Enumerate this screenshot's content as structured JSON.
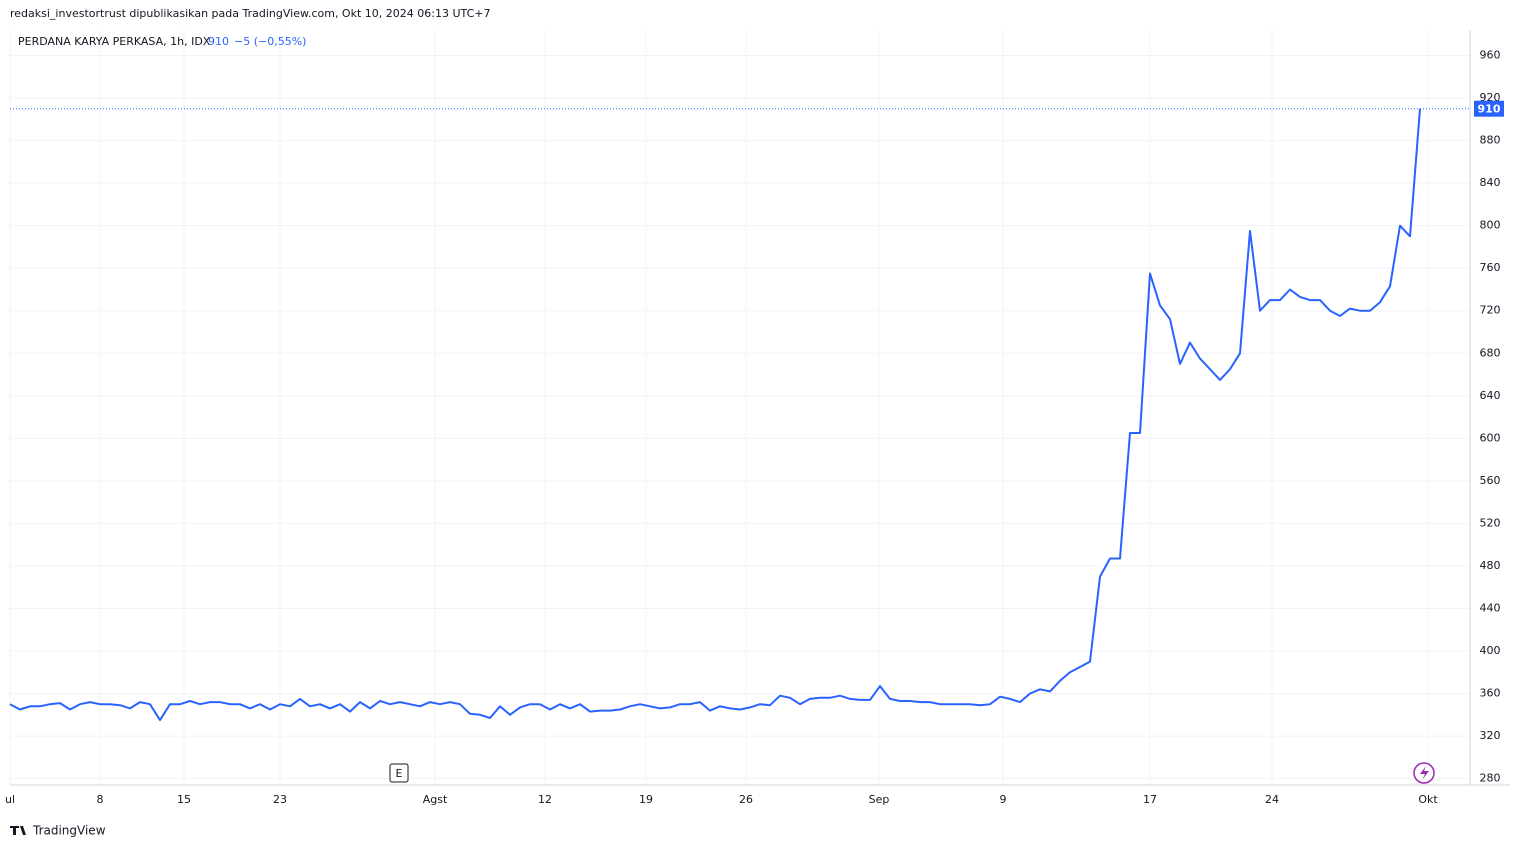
{
  "header": "redaksi_investortrust dipublikasikan pada TradingView.com, Okt 10, 2024 06:13 UTC+7",
  "footer": "TradingView",
  "event_marker": "E",
  "chart_data": {
    "type": "line",
    "title": "PERDANA KARYA PERKASA, 1h, IDX",
    "change": "−5 (−0,55%)",
    "series": [
      {
        "name": "PERDANA KARYA PERKASA",
        "color": "#2962ff",
        "values": [
          350,
          345,
          348,
          348,
          350,
          351,
          345,
          350,
          352,
          350,
          350,
          349,
          346,
          352,
          350,
          335,
          350,
          350,
          353,
          350,
          352,
          352,
          350,
          350,
          346,
          350,
          345,
          350,
          348,
          355,
          348,
          350,
          346,
          350,
          343,
          352,
          346,
          353,
          350,
          352,
          350,
          348,
          352,
          350,
          352,
          350,
          341,
          340,
          337,
          348,
          340,
          347,
          350,
          350,
          345,
          350,
          346,
          350,
          343,
          344,
          344,
          345,
          348,
          350,
          348,
          346,
          347,
          350,
          350,
          352,
          344,
          348,
          346,
          345,
          347,
          350,
          349,
          358,
          356,
          350,
          355,
          356,
          356,
          358,
          355,
          354,
          354,
          367,
          355,
          353,
          353,
          352,
          352,
          350,
          350,
          350,
          350,
          349,
          350,
          357,
          355,
          352,
          360,
          364,
          362,
          372,
          380,
          385,
          390,
          470,
          487,
          487,
          605,
          605,
          755,
          725,
          712,
          670,
          690,
          675,
          665,
          655,
          665,
          680,
          795,
          720,
          730,
          730,
          740,
          733,
          730,
          730,
          720,
          715,
          722,
          720,
          720,
          728,
          743,
          800,
          790,
          910
        ]
      }
    ],
    "xlim": [
      0,
      146
    ],
    "xticks": [
      {
        "value": 0,
        "label": "ul"
      },
      {
        "value": 9,
        "label": "8"
      },
      {
        "value": 17.4,
        "label": "15"
      },
      {
        "value": 27,
        "label": "23"
      },
      {
        "value": 42.5,
        "label": "Agst"
      },
      {
        "value": 53.5,
        "label": "12"
      },
      {
        "value": 63.6,
        "label": "19"
      },
      {
        "value": 73.6,
        "label": "26"
      },
      {
        "value": 86.9,
        "label": "Sep"
      },
      {
        "value": 99.3,
        "label": "9"
      },
      {
        "value": 114,
        "label": "17"
      },
      {
        "value": 126.2,
        "label": "24"
      },
      {
        "value": 141.8,
        "label": "Okt"
      }
    ],
    "ylim": [
      274,
      984
    ],
    "yticks": [
      280,
      320,
      360,
      400,
      440,
      480,
      520,
      560,
      600,
      640,
      680,
      720,
      760,
      800,
      840,
      880,
      920,
      960
    ],
    "grid": true
  }
}
